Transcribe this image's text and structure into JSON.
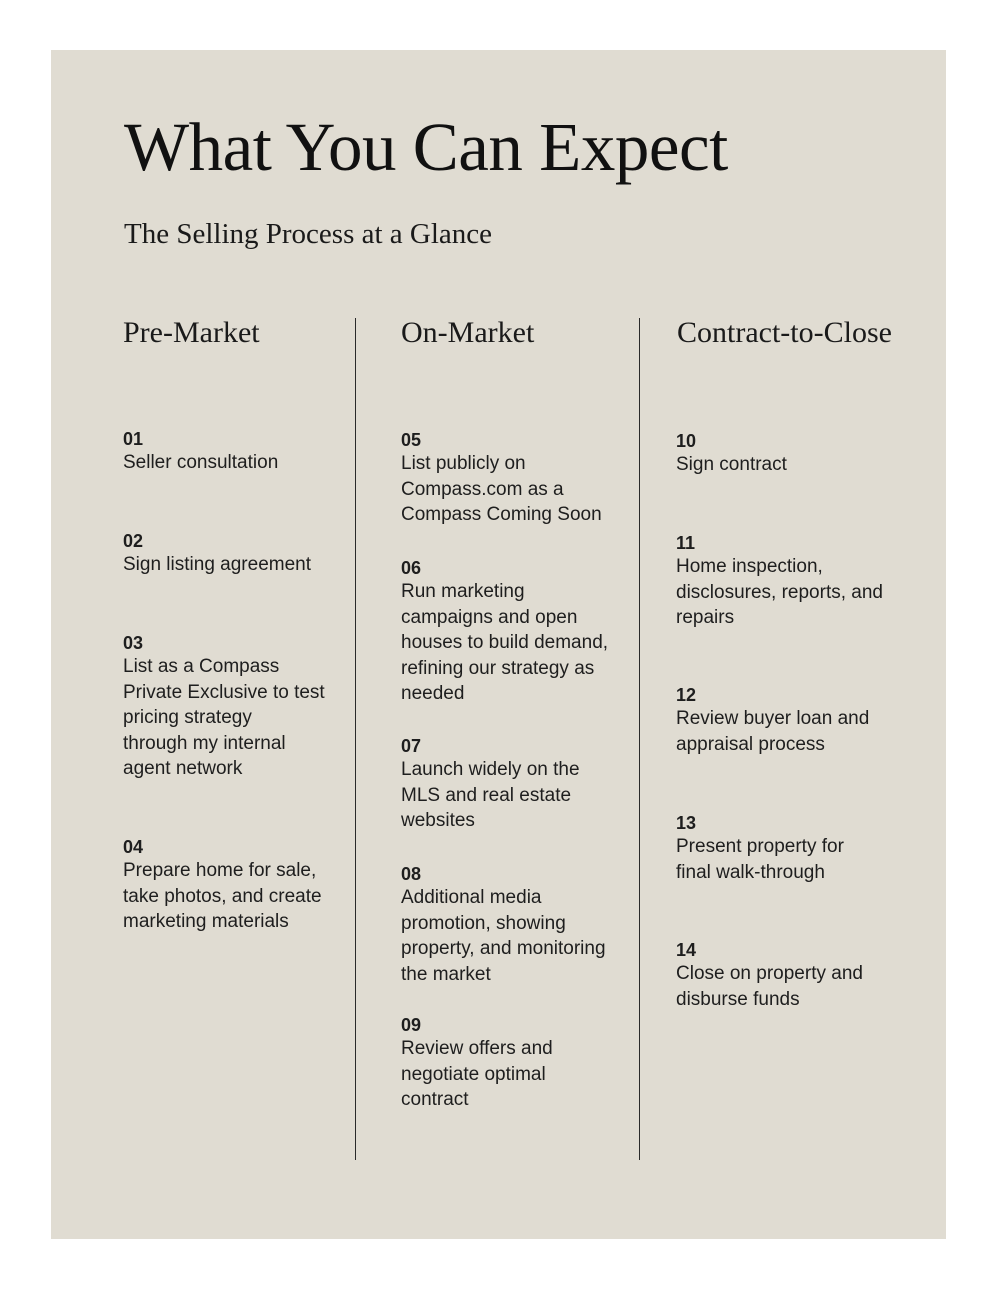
{
  "title": "What You Can Expect",
  "subtitle": "The Selling Process at a Glance",
  "columns": [
    {
      "heading": "Pre-Market",
      "steps": [
        {
          "num": "01",
          "text": "Seller consultation"
        },
        {
          "num": "02",
          "text": "Sign listing agreement"
        },
        {
          "num": "03",
          "text": "List as a Compass\nPrivate Exclusive to test\npricing strategy\nthrough my internal\nagent network"
        },
        {
          "num": "04",
          "text": "Prepare home for sale,\ntake photos, and create\nmarketing materials"
        }
      ]
    },
    {
      "heading": "On-Market",
      "steps": [
        {
          "num": "05",
          "text": "List publicly on\nCompass.com as a\nCompass Coming Soon"
        },
        {
          "num": "06",
          "text": "Run marketing\ncampaigns and open\nhouses to build demand,\nrefining our strategy as\nneeded"
        },
        {
          "num": "07",
          "text": "Launch widely on the\nMLS and real estate\nwebsites"
        },
        {
          "num": "08",
          "text": "Additional media\npromotion, showing\nproperty, and monitoring\nthe market"
        },
        {
          "num": "09",
          "text": "Review offers and\nnegotiate optimal\ncontract"
        }
      ]
    },
    {
      "heading": "Contract-to-Close",
      "steps": [
        {
          "num": "10",
          "text": "Sign contract"
        },
        {
          "num": "11",
          "text": "Home inspection,\ndisclosures, reports, and\nrepairs"
        },
        {
          "num": "12",
          "text": "Review buyer loan and\nappraisal process"
        },
        {
          "num": "13",
          "text": "Present property for\nfinal walk-through"
        },
        {
          "num": "14",
          "text": "Close on property and\ndisburse funds"
        }
      ]
    }
  ]
}
